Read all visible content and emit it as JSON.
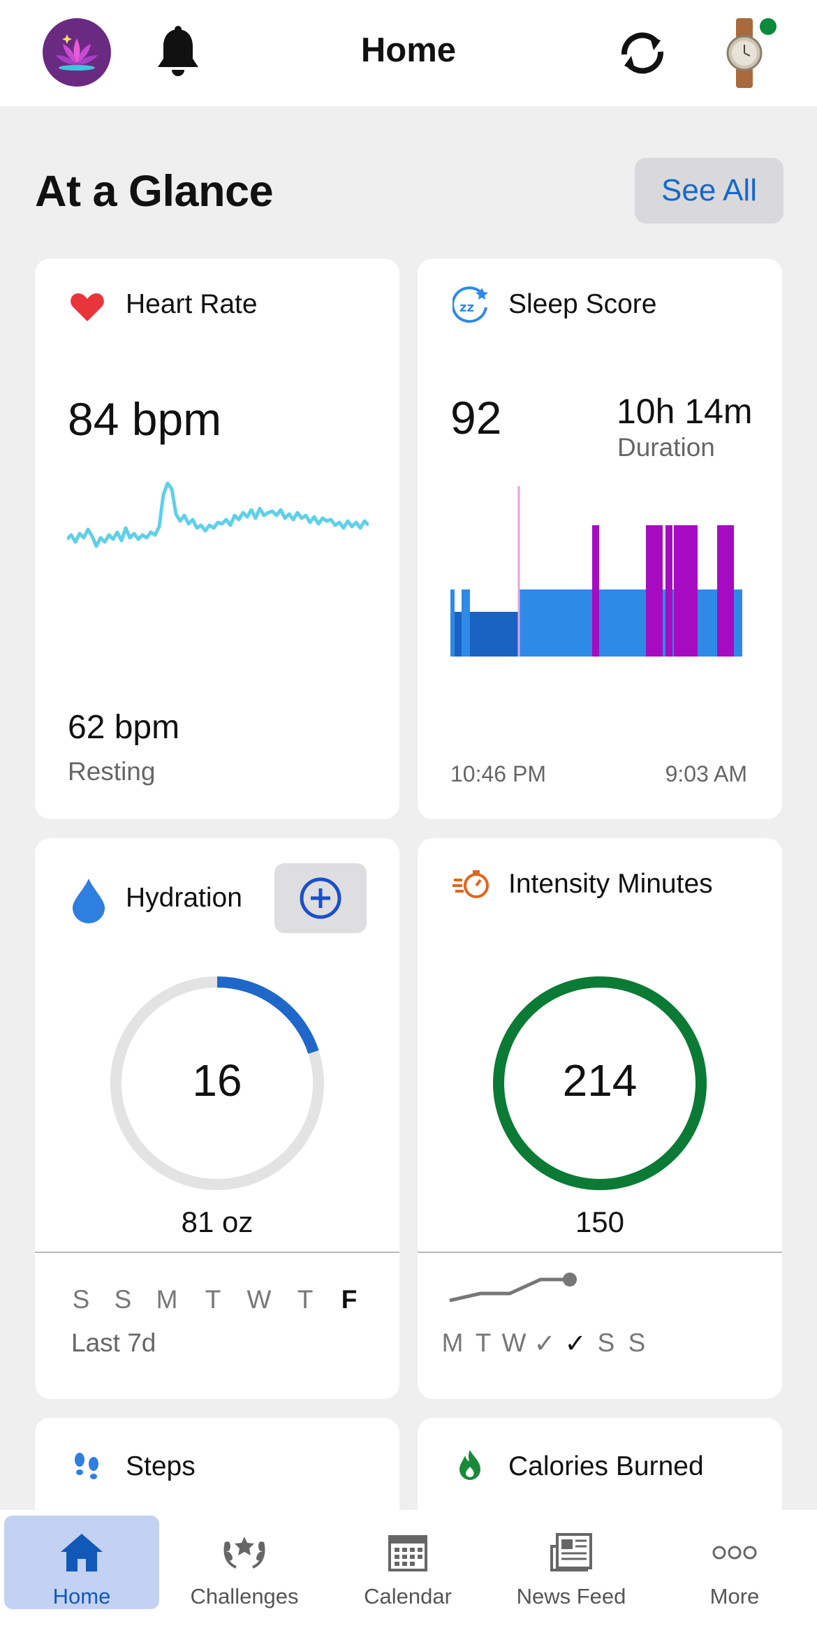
{
  "header": {
    "title": "Home",
    "notification_icon": "bell-icon",
    "sync_icon": "sync-icon",
    "device_icon": "watch-icon",
    "device_status_color": "#0a8a3a"
  },
  "section": {
    "title": "At a Glance",
    "see_all_label": "See All"
  },
  "heart_rate": {
    "title": "Heart Rate",
    "current": "84 bpm",
    "resting_value": "62 bpm",
    "resting_label": "Resting",
    "line_color": "#5fd0e8",
    "icon_color": "#e8343a"
  },
  "sleep": {
    "title": "Sleep Score",
    "score": "92",
    "duration_value": "10h 14m",
    "duration_label": "Duration",
    "start_time": "10:46 PM",
    "end_time": "9:03 AM",
    "colors": {
      "light": "#2e8ae6",
      "deep": "#1a62c2",
      "rem": "#a60bc2",
      "awake": "#e8a0e8"
    }
  },
  "hydration": {
    "title": "Hydration",
    "value": "16",
    "goal": "81 oz",
    "progress_fraction": 0.2,
    "days": [
      "S",
      "S",
      "M",
      "T",
      "W",
      "T",
      "F"
    ],
    "current_day_index": 6,
    "period_label": "Last 7d",
    "ring_color": "#1f68c9"
  },
  "intensity": {
    "title": "Intensity Minutes",
    "value": "214",
    "goal": "150",
    "progress_fraction": 1.0,
    "days": [
      "M",
      "T",
      "W",
      "✓",
      "✓",
      "S",
      "S"
    ],
    "ring_color": "#0a7a34",
    "icon_color": "#e2651b"
  },
  "steps": {
    "title": "Steps"
  },
  "calories": {
    "title": "Calories Burned"
  },
  "nav": {
    "items": [
      {
        "label": "Home",
        "icon": "home-icon"
      },
      {
        "label": "Challenges",
        "icon": "laurel-icon"
      },
      {
        "label": "Calendar",
        "icon": "calendar-icon"
      },
      {
        "label": "News Feed",
        "icon": "newspaper-icon"
      },
      {
        "label": "More",
        "icon": "more-icon"
      }
    ],
    "active_index": 0
  }
}
